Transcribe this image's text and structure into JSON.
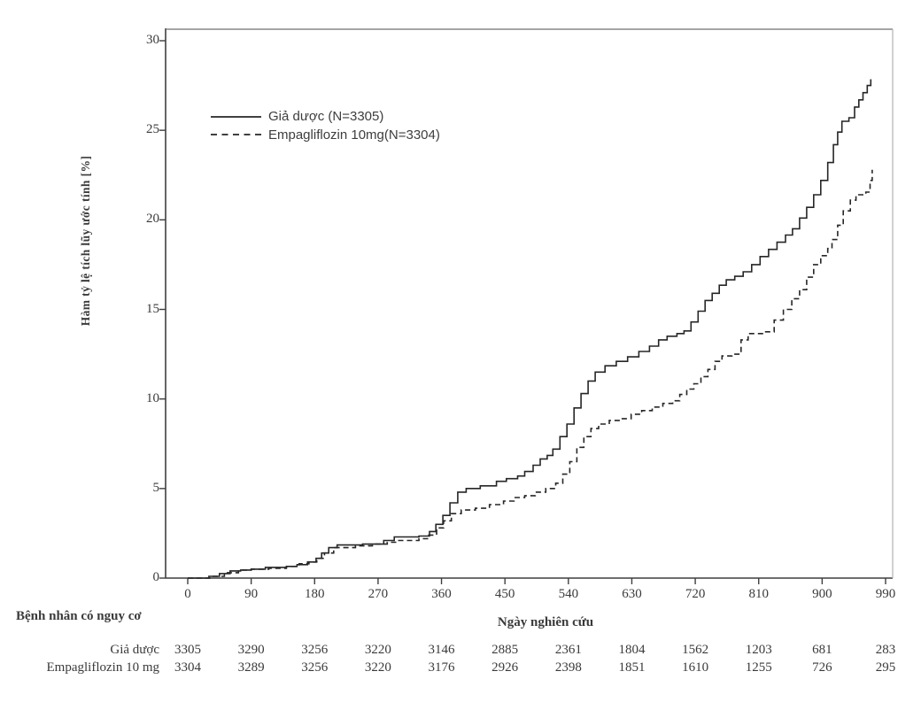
{
  "colors": {
    "axis": "#3f3f3f",
    "frame_top": "#6e6e6e",
    "frame_right": "#b8b8b8",
    "curve": "#262626",
    "text": "#3a3a3a",
    "background": "#ffffff"
  },
  "chart_data": {
    "type": "line",
    "subtype": "kaplan-meier-cumulative-incidence-step",
    "title": "",
    "xlabel": "Ngày nghiên cứu",
    "ylabel": "Hàm tỷ lệ tích lũy ước tính [%]",
    "xlim": [
      0,
      990
    ],
    "ylim": [
      0,
      30
    ],
    "x_ticks": [
      0,
      90,
      180,
      270,
      360,
      450,
      540,
      630,
      720,
      810,
      900,
      990
    ],
    "y_ticks": [
      0,
      5,
      10,
      15,
      20,
      25,
      30
    ],
    "grid": "off",
    "legend_position": "top-left-inside",
    "series": [
      {
        "name": "Giả dược (N=3305)",
        "style": "solid",
        "points": [
          [
            0,
            0
          ],
          [
            30,
            0.1
          ],
          [
            45,
            0.25
          ],
          [
            60,
            0.4
          ],
          [
            75,
            0.45
          ],
          [
            90,
            0.5
          ],
          [
            110,
            0.6
          ],
          [
            140,
            0.65
          ],
          [
            155,
            0.75
          ],
          [
            170,
            0.9
          ],
          [
            182,
            1.1
          ],
          [
            190,
            1.4
          ],
          [
            200,
            1.7
          ],
          [
            212,
            1.85
          ],
          [
            248,
            1.9
          ],
          [
            278,
            2.1
          ],
          [
            293,
            2.3
          ],
          [
            328,
            2.35
          ],
          [
            343,
            2.6
          ],
          [
            352,
            3.0
          ],
          [
            362,
            3.5
          ],
          [
            372,
            4.2
          ],
          [
            383,
            4.8
          ],
          [
            395,
            5.0
          ],
          [
            415,
            5.15
          ],
          [
            438,
            5.4
          ],
          [
            452,
            5.55
          ],
          [
            468,
            5.7
          ],
          [
            478,
            5.95
          ],
          [
            490,
            6.3
          ],
          [
            500,
            6.65
          ],
          [
            510,
            6.85
          ],
          [
            518,
            7.2
          ],
          [
            528,
            7.9
          ],
          [
            538,
            8.6
          ],
          [
            548,
            9.5
          ],
          [
            558,
            10.3
          ],
          [
            568,
            11.0
          ],
          [
            578,
            11.5
          ],
          [
            592,
            11.85
          ],
          [
            608,
            12.1
          ],
          [
            624,
            12.35
          ],
          [
            640,
            12.65
          ],
          [
            655,
            12.95
          ],
          [
            668,
            13.3
          ],
          [
            680,
            13.5
          ],
          [
            694,
            13.65
          ],
          [
            704,
            13.8
          ],
          [
            714,
            14.3
          ],
          [
            724,
            14.9
          ],
          [
            734,
            15.5
          ],
          [
            744,
            15.9
          ],
          [
            754,
            16.35
          ],
          [
            764,
            16.65
          ],
          [
            776,
            16.85
          ],
          [
            788,
            17.1
          ],
          [
            800,
            17.5
          ],
          [
            812,
            17.95
          ],
          [
            824,
            18.35
          ],
          [
            836,
            18.75
          ],
          [
            848,
            19.15
          ],
          [
            858,
            19.5
          ],
          [
            868,
            20.1
          ],
          [
            878,
            20.7
          ],
          [
            888,
            21.4
          ],
          [
            898,
            22.2
          ],
          [
            908,
            23.2
          ],
          [
            916,
            24.2
          ],
          [
            922,
            24.9
          ],
          [
            928,
            25.5
          ],
          [
            938,
            25.7
          ],
          [
            946,
            26.3
          ],
          [
            952,
            26.7
          ],
          [
            958,
            27.1
          ],
          [
            964,
            27.5
          ],
          [
            969,
            27.85
          ]
        ]
      },
      {
        "name": "Empagliflozin 10mg(N=3304)",
        "style": "dashed",
        "points": [
          [
            0,
            0
          ],
          [
            35,
            0.1
          ],
          [
            52,
            0.3
          ],
          [
            72,
            0.45
          ],
          [
            90,
            0.5
          ],
          [
            115,
            0.55
          ],
          [
            140,
            0.65
          ],
          [
            158,
            0.8
          ],
          [
            172,
            0.9
          ],
          [
            183,
            1.1
          ],
          [
            194,
            1.4
          ],
          [
            207,
            1.7
          ],
          [
            238,
            1.8
          ],
          [
            262,
            1.9
          ],
          [
            283,
            2.0
          ],
          [
            298,
            2.1
          ],
          [
            328,
            2.2
          ],
          [
            342,
            2.4
          ],
          [
            353,
            2.8
          ],
          [
            363,
            3.2
          ],
          [
            374,
            3.6
          ],
          [
            388,
            3.8
          ],
          [
            408,
            3.9
          ],
          [
            428,
            4.1
          ],
          [
            448,
            4.3
          ],
          [
            463,
            4.5
          ],
          [
            478,
            4.6
          ],
          [
            493,
            4.8
          ],
          [
            508,
            5.0
          ],
          [
            522,
            5.3
          ],
          [
            532,
            5.8
          ],
          [
            542,
            6.5
          ],
          [
            552,
            7.3
          ],
          [
            562,
            7.9
          ],
          [
            572,
            8.35
          ],
          [
            583,
            8.6
          ],
          [
            598,
            8.8
          ],
          [
            614,
            8.9
          ],
          [
            629,
            9.15
          ],
          [
            644,
            9.35
          ],
          [
            659,
            9.55
          ],
          [
            674,
            9.75
          ],
          [
            688,
            9.9
          ],
          [
            698,
            10.25
          ],
          [
            708,
            10.55
          ],
          [
            718,
            10.85
          ],
          [
            728,
            11.25
          ],
          [
            738,
            11.65
          ],
          [
            748,
            12.1
          ],
          [
            758,
            12.4
          ],
          [
            772,
            12.5
          ],
          [
            785,
            13.3
          ],
          [
            795,
            13.65
          ],
          [
            818,
            13.75
          ],
          [
            832,
            14.4
          ],
          [
            845,
            15.0
          ],
          [
            857,
            15.6
          ],
          [
            868,
            16.1
          ],
          [
            878,
            16.8
          ],
          [
            888,
            17.5
          ],
          [
            898,
            18.0
          ],
          [
            908,
            18.4
          ],
          [
            914,
            18.9
          ],
          [
            922,
            19.7
          ],
          [
            930,
            20.5
          ],
          [
            940,
            21.1
          ],
          [
            948,
            21.4
          ],
          [
            962,
            21.55
          ],
          [
            968,
            22.2
          ],
          [
            971,
            22.8
          ]
        ]
      }
    ],
    "risk_table": {
      "title": "Bệnh nhân có nguy cơ",
      "rows": [
        {
          "label": "Giả dược",
          "counts": [
            3305,
            3290,
            3256,
            3220,
            3146,
            2885,
            2361,
            1804,
            1562,
            1203,
            681,
            283
          ]
        },
        {
          "label": "Empagliflozin 10 mg",
          "counts": [
            3304,
            3289,
            3256,
            3220,
            3176,
            2926,
            2398,
            1851,
            1610,
            1255,
            726,
            295
          ]
        }
      ]
    }
  }
}
